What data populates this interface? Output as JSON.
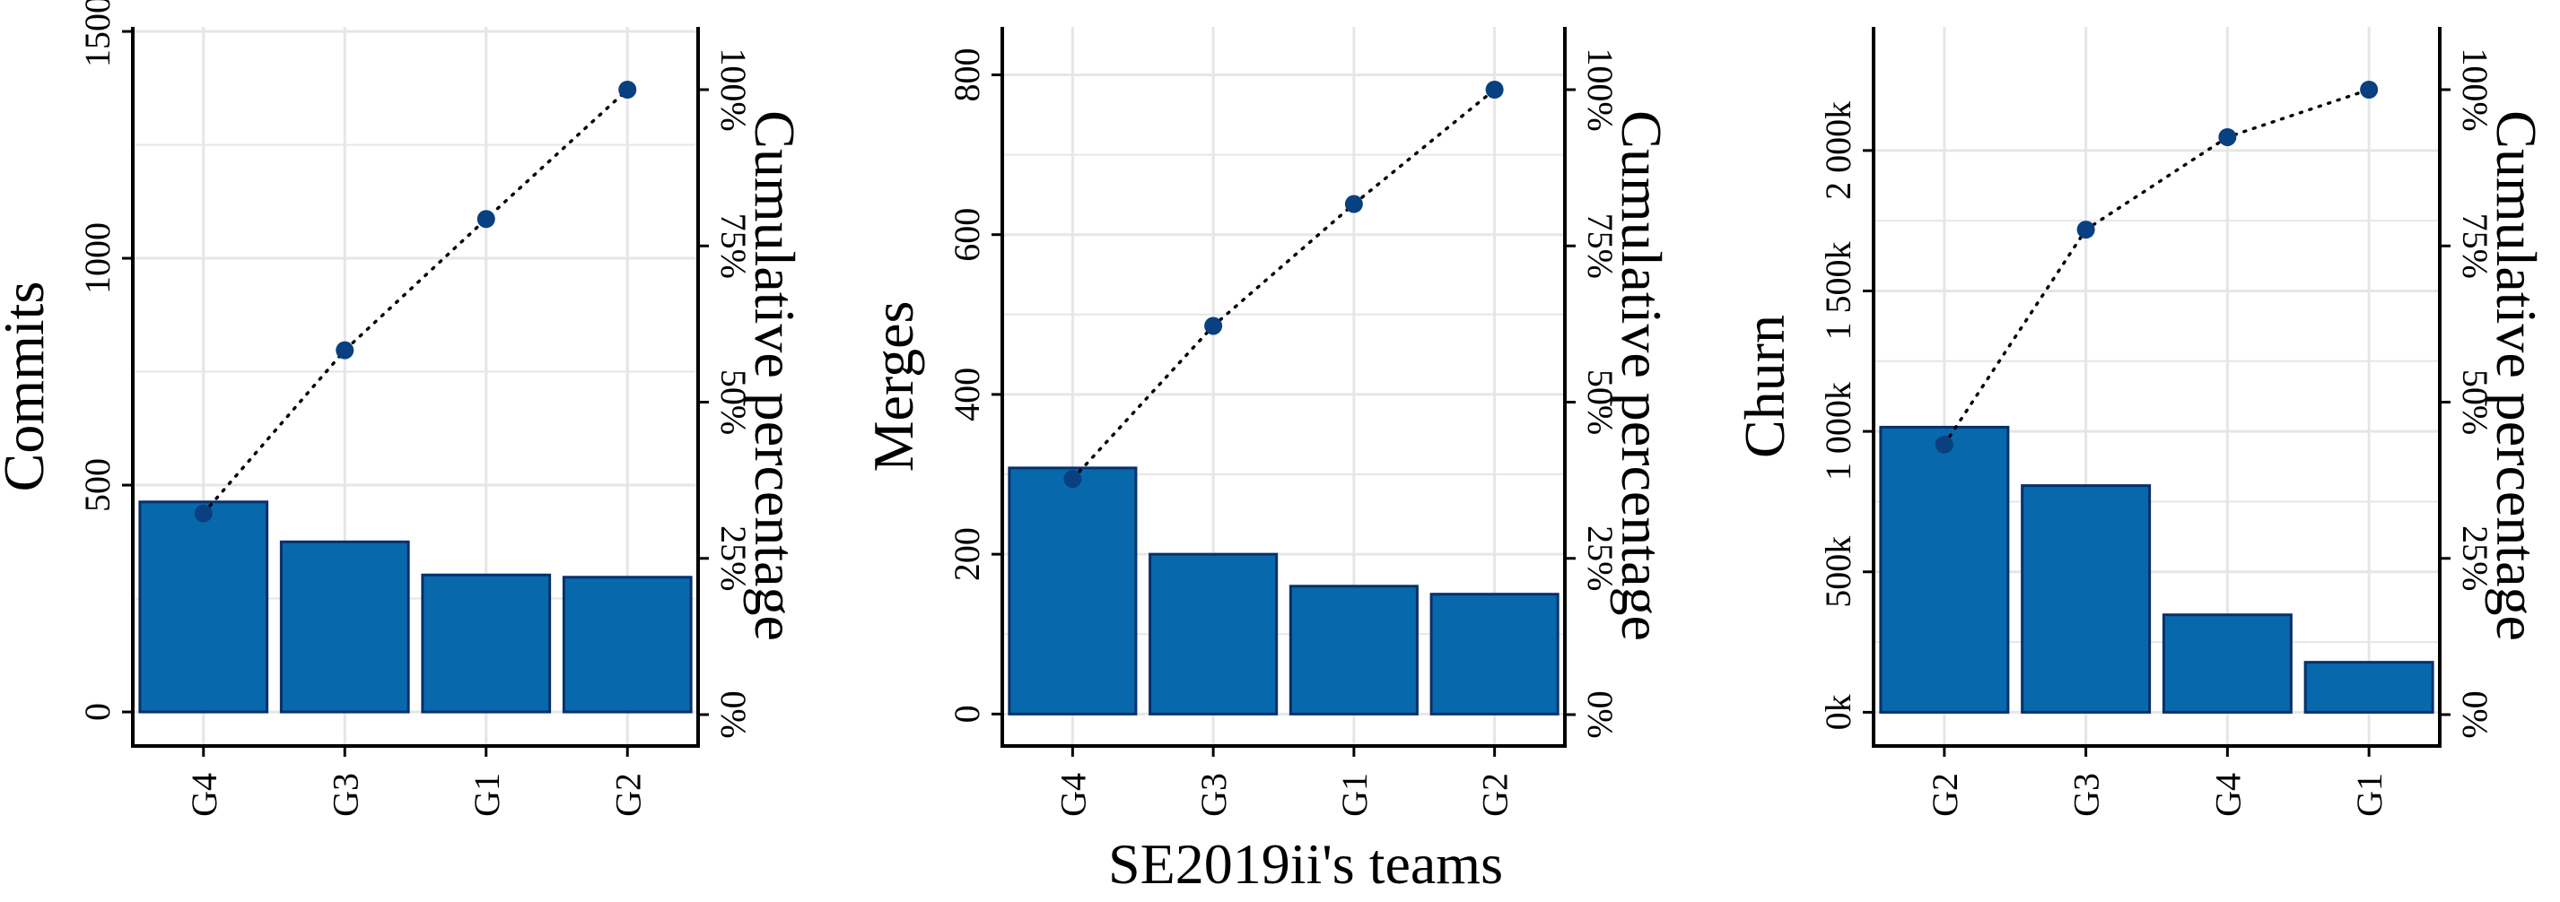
{
  "figure": {
    "shared_xlabel": "SE2019ii's teams"
  },
  "colors": {
    "bar_fill": "#0868ac",
    "bar_stroke": "#08306b",
    "point": "#084081",
    "grid": "#e6e6e6",
    "axis": "#000000"
  },
  "chart_data": [
    {
      "type": "bar",
      "categories": [
        "G4",
        "G3",
        "G1",
        "G2"
      ],
      "values": [
        463,
        375,
        302,
        297
      ],
      "cumulative_percent": [
        32.2,
        58.3,
        79.3,
        100
      ],
      "ylabel": "Commits",
      "y2label": "Cumulative percentage",
      "ylim": [
        -75,
        1510
      ],
      "yticks": [
        0,
        500,
        1000,
        1500
      ],
      "ytick_labels": [
        "0",
        "500",
        "1000",
        "1500"
      ],
      "y2ticks": [
        0,
        25,
        50,
        75,
        100
      ],
      "y2tick_labels": [
        "0%",
        "25%",
        "50%",
        "75%",
        "100%"
      ],
      "grid": true
    },
    {
      "type": "bar",
      "categories": [
        "G4",
        "G3",
        "G1",
        "G2"
      ],
      "values": [
        308,
        200,
        160,
        150
      ],
      "cumulative_percent": [
        37.7,
        62.2,
        81.7,
        100
      ],
      "ylabel": "Merges",
      "y2label": "Cumulative percentage",
      "ylim": [
        -40,
        860
      ],
      "yticks": [
        0,
        200,
        400,
        600,
        800
      ],
      "ytick_labels": [
        "0",
        "200",
        "400",
        "600",
        "800"
      ],
      "y2ticks": [
        0,
        25,
        50,
        75,
        100
      ],
      "y2tick_labels": [
        "0%",
        "25%",
        "50%",
        "75%",
        "100%"
      ],
      "grid": true
    },
    {
      "type": "bar",
      "categories": [
        "G2",
        "G3",
        "G4",
        "G1"
      ],
      "values": [
        1015000,
        807000,
        347000,
        178000
      ],
      "cumulative_percent": [
        43.2,
        77.6,
        92.4,
        100
      ],
      "ylabel": "Churn",
      "y2label": "Cumulative percentage",
      "ylim": [
        -120000,
        2440000
      ],
      "yticks": [
        0,
        500000,
        1000000,
        1500000,
        2000000
      ],
      "ytick_labels": [
        "0k",
        "500k",
        "1 000k",
        "1 500k",
        "2 000k"
      ],
      "y2ticks": [
        0,
        25,
        50,
        75,
        100
      ],
      "y2tick_labels": [
        "0%",
        "25%",
        "50%",
        "75%",
        "100%"
      ],
      "grid": true
    }
  ]
}
